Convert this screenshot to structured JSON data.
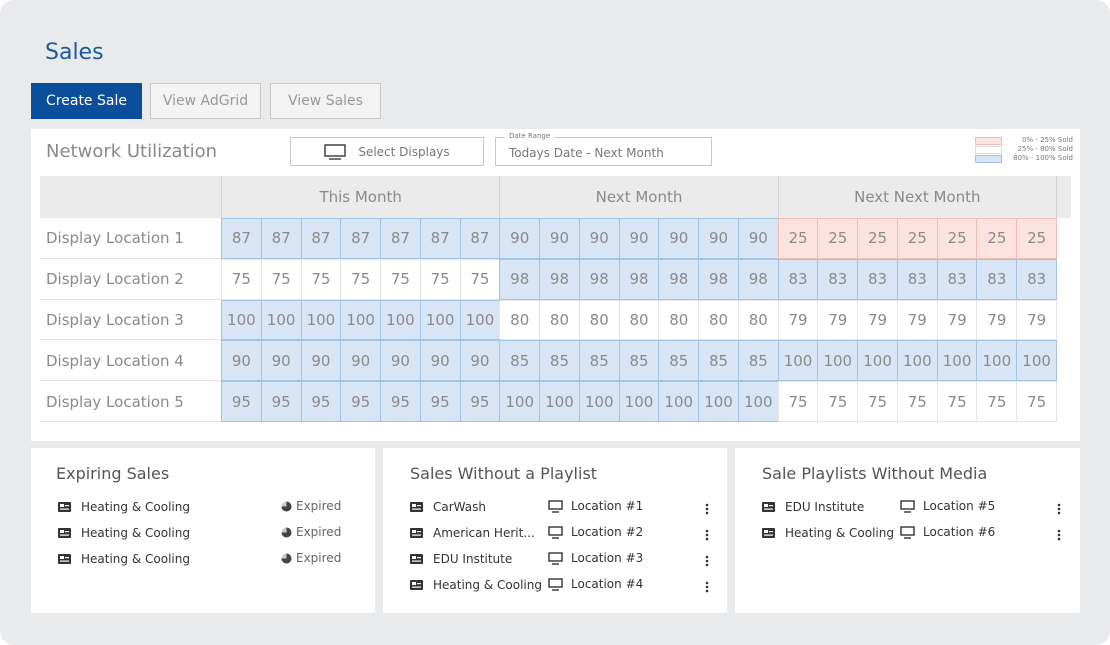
{
  "header": {
    "title": "Sales"
  },
  "buttons": [
    "Create Sale",
    "View AdGrid",
    "View Sales"
  ],
  "utilization": {
    "title": "Network Utilization",
    "select_displays": "Select Displays",
    "date_range_label": "Date Range",
    "date_range": "Todays Date - Next Month",
    "legend": [
      {
        "label": "0% - 25% Sold",
        "min": 0,
        "max": 25,
        "color": "#fde3df",
        "border": "#f0bdb4"
      },
      {
        "label": "25% - 80% Sold",
        "min": 25,
        "max": 80,
        "color": "#ffffff",
        "border": "#dddddd"
      },
      {
        "label": "80% - 100% Sold",
        "min": 80,
        "max": 100,
        "color": "#d7e5f5",
        "border": "#a3c3e3"
      }
    ],
    "periods": [
      "This Month",
      "Next Month",
      "Next Next Month"
    ],
    "rows": [
      {
        "label": "Display Location 1",
        "values": [
          87,
          87,
          87,
          87,
          87,
          87,
          87,
          90,
          90,
          90,
          90,
          90,
          90,
          90,
          25,
          25,
          25,
          25,
          25,
          25,
          25
        ]
      },
      {
        "label": "Display Location 2",
        "values": [
          75,
          75,
          75,
          75,
          75,
          75,
          75,
          98,
          98,
          98,
          98,
          98,
          98,
          98,
          83,
          83,
          83,
          83,
          83,
          83,
          83
        ]
      },
      {
        "label": "Display Location 3",
        "values": [
          100,
          100,
          100,
          100,
          100,
          100,
          100,
          80,
          80,
          80,
          80,
          80,
          80,
          80,
          79,
          79,
          79,
          79,
          79,
          79,
          79
        ]
      },
      {
        "label": "Display Location 4",
        "values": [
          90,
          90,
          90,
          90,
          90,
          90,
          90,
          85,
          85,
          85,
          85,
          85,
          85,
          85,
          100,
          100,
          100,
          100,
          100,
          100,
          100
        ]
      },
      {
        "label": "Display Location 5",
        "values": [
          95,
          95,
          95,
          95,
          95,
          95,
          95,
          100,
          100,
          100,
          100,
          100,
          100,
          100,
          75,
          75,
          75,
          75,
          75,
          75,
          75
        ]
      }
    ]
  },
  "expiring_sales": {
    "title": "Expiring Sales",
    "items": [
      {
        "name": "Heating & Cooling",
        "status": "Expired"
      },
      {
        "name": "Heating & Cooling",
        "status": "Expired"
      },
      {
        "name": "Heating & Cooling",
        "status": "Expired"
      }
    ]
  },
  "sales_without_playlist": {
    "title": "Sales Without a Playlist",
    "items": [
      {
        "name": "CarWash",
        "location": "Location #1"
      },
      {
        "name": "American Herit...",
        "location": "Location #2"
      },
      {
        "name": "EDU Institute",
        "location": "Location #3"
      },
      {
        "name": "Heating & Cooling",
        "location": "Location #4"
      }
    ]
  },
  "playlists_without_media": {
    "title": "Sale Playlists Without Media",
    "items": [
      {
        "name": "EDU Institute",
        "location": "Location #5"
      },
      {
        "name": "Heating & Cooling",
        "location": "Location #6"
      }
    ]
  }
}
